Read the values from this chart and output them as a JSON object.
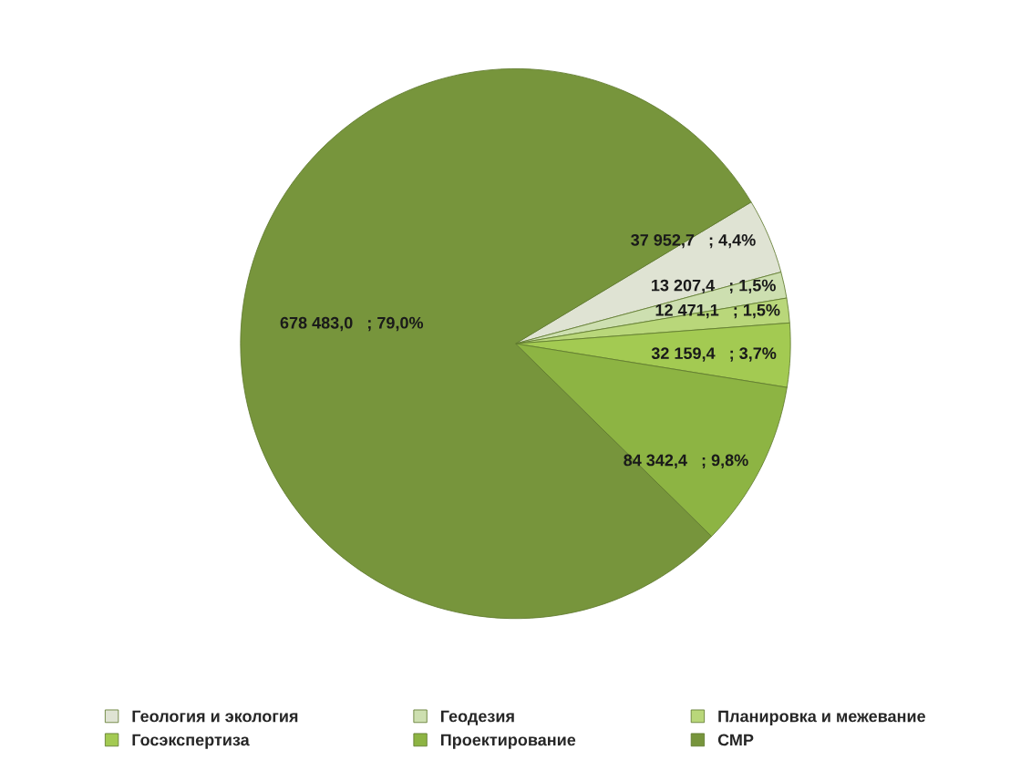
{
  "chart_data": {
    "type": "pie",
    "categories": [
      "Геология и экология",
      "Геодезия",
      "Планировка и межевание",
      "Госэкспертиза",
      "Проектирование",
      "СМР"
    ],
    "values": [
      37952.7,
      13207.4,
      12471.1,
      32159.4,
      84342.4,
      678483.0
    ],
    "value_labels": [
      "37 952,7   ; 4,4%",
      "13 207,4   ; 1,5%",
      "12 471,1   ; 1,5%",
      "32 159,4   ; 3,7%",
      "84 342,4   ; 9,8%",
      "678 483,0   ; 79,0%"
    ],
    "colors": [
      "#dfe3d3",
      "#cddfb0",
      "#b9d77a",
      "#a3ca52",
      "#8db443",
      "#77953c"
    ],
    "legend": "bottom"
  }
}
